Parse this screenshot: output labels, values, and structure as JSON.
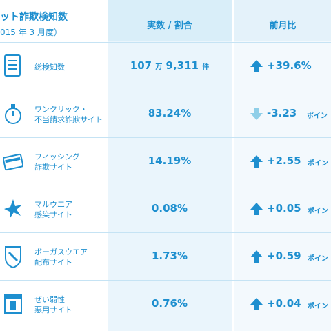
{
  "header": {
    "title_line1": "ット詐欺検知数",
    "title_line2": "015 年 3 月度）",
    "col_value": "実数 / 割合",
    "col_change": "前月比"
  },
  "rows": [
    {
      "label1": "総検知数",
      "label2": "",
      "value_num": "107",
      "value_unit1": "万",
      "value_rest": "9,311",
      "value_unit2": "件",
      "change": "+39.6%",
      "change_unit": "",
      "direction": "up"
    },
    {
      "label1": "ワンクリック・",
      "label2": "不当請求詐欺サイト",
      "value_num": "83.24%",
      "value_unit1": "",
      "value_rest": "",
      "value_unit2": "",
      "change": "-3.23",
      "change_unit": "ポイン",
      "direction": "down"
    },
    {
      "label1": "フィッシング",
      "label2": "詐欺サイト",
      "value_num": "14.19%",
      "value_unit1": "",
      "value_rest": "",
      "value_unit2": "",
      "change": "+2.55",
      "change_unit": "ポイン",
      "direction": "up"
    },
    {
      "label1": "マルウエア",
      "label2": "感染サイト",
      "value_num": "0.08%",
      "value_unit1": "",
      "value_rest": "",
      "value_unit2": "",
      "change": "+0.05",
      "change_unit": "ポイン",
      "direction": "up"
    },
    {
      "label1": "ボーガスウエア",
      "label2": "配布サイト",
      "value_num": "1.73%",
      "value_unit1": "",
      "value_rest": "",
      "value_unit2": "",
      "change": "+0.59",
      "change_unit": "ポイン",
      "direction": "up"
    },
    {
      "label1": "ぜい弱性",
      "label2": "悪用サイト",
      "value_num": "0.76%",
      "value_unit1": "",
      "value_rest": "",
      "value_unit2": "",
      "change": "+0.04",
      "change_unit": "ポイン",
      "direction": "up"
    }
  ],
  "icons": [
    "document-list-icon",
    "stopwatch-icon",
    "credit-card-icon",
    "virus-star-icon",
    "shield-icon",
    "window-warning-icon"
  ],
  "colors": {
    "accent": "#1e8fcf",
    "up_arrow": "#1e8fcf",
    "down_arrow": "#8fcfe8",
    "header_bg": "#d9eef9",
    "row_line": "#c5e3f4"
  }
}
